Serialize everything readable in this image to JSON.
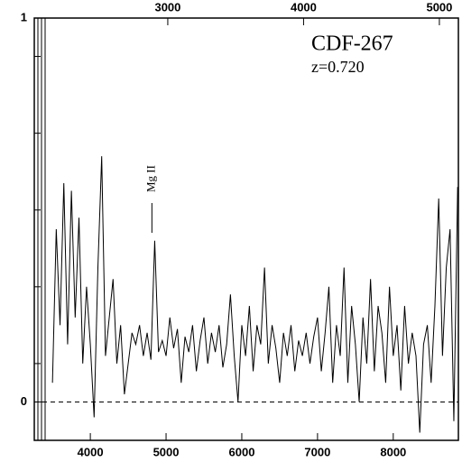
{
  "chart_data": {
    "type": "line",
    "title": "CDF-267",
    "subtitle": "z=0.720",
    "annotations": [
      {
        "text": "Mg II",
        "x": 4813
      }
    ],
    "x": [
      3500,
      3550,
      3600,
      3650,
      3700,
      3750,
      3800,
      3850,
      3900,
      3950,
      4000,
      4050,
      4100,
      4150,
      4200,
      4250,
      4300,
      4350,
      4400,
      4450,
      4500,
      4550,
      4600,
      4650,
      4700,
      4750,
      4800,
      4850,
      4900,
      4950,
      5000,
      5050,
      5100,
      5150,
      5200,
      5250,
      5300,
      5350,
      5400,
      5450,
      5500,
      5550,
      5600,
      5650,
      5700,
      5750,
      5800,
      5850,
      5900,
      5950,
      6000,
      6050,
      6100,
      6150,
      6200,
      6250,
      6300,
      6350,
      6400,
      6450,
      6500,
      6550,
      6600,
      6650,
      6700,
      6750,
      6800,
      6850,
      6900,
      6950,
      7000,
      7050,
      7100,
      7150,
      7200,
      7250,
      7300,
      7350,
      7400,
      7450,
      7500,
      7550,
      7600,
      7650,
      7700,
      7750,
      7800,
      7850,
      7900,
      7950,
      8000,
      8050,
      8100,
      8150,
      8200,
      8250,
      8300,
      8350,
      8400,
      8450,
      8500,
      8550,
      8600,
      8650,
      8700,
      8750,
      8800,
      8850
    ],
    "series": [
      {
        "color": "#000000",
        "values": [
          0.05,
          0.45,
          0.2,
          0.57,
          0.15,
          0.55,
          0.22,
          0.48,
          0.1,
          0.3,
          0.15,
          -0.04,
          0.35,
          0.64,
          0.12,
          0.22,
          0.32,
          0.1,
          0.2,
          0.02,
          0.1,
          0.18,
          0.15,
          0.2,
          0.12,
          0.18,
          0.11,
          0.42,
          0.13,
          0.16,
          0.12,
          0.22,
          0.14,
          0.19,
          0.05,
          0.17,
          0.13,
          0.2,
          0.08,
          0.16,
          0.22,
          0.1,
          0.18,
          0.13,
          0.2,
          0.09,
          0.15,
          0.28,
          0.12,
          0.0,
          0.2,
          0.12,
          0.25,
          0.08,
          0.2,
          0.15,
          0.35,
          0.1,
          0.2,
          0.14,
          0.05,
          0.18,
          0.12,
          0.2,
          0.08,
          0.16,
          0.12,
          0.18,
          0.1,
          0.17,
          0.22,
          0.08,
          0.18,
          0.3,
          0.05,
          0.2,
          0.12,
          0.35,
          0.05,
          0.25,
          0.15,
          0.0,
          0.22,
          0.1,
          0.32,
          0.08,
          0.25,
          0.18,
          0.05,
          0.3,
          0.12,
          0.2,
          0.03,
          0.25,
          0.1,
          0.18,
          0.12,
          -0.08,
          0.15,
          0.2,
          0.05,
          0.25,
          0.53,
          0.12,
          0.35,
          0.45,
          -0.05,
          0.56
        ]
      }
    ],
    "xlim": [
      3260,
      8860
    ],
    "xticks": [
      4000,
      5000,
      6000,
      7000,
      8000
    ],
    "x2lim": [
      2017,
      5140
    ],
    "x2ticks": [
      3000,
      4000,
      5000
    ],
    "ylim": [
      -0.1,
      1
    ],
    "yticks": [
      0,
      1
    ],
    "yminorticks": [
      0.1,
      0.3,
      0.5,
      0.7,
      0.9
    ],
    "zero_line": true
  }
}
